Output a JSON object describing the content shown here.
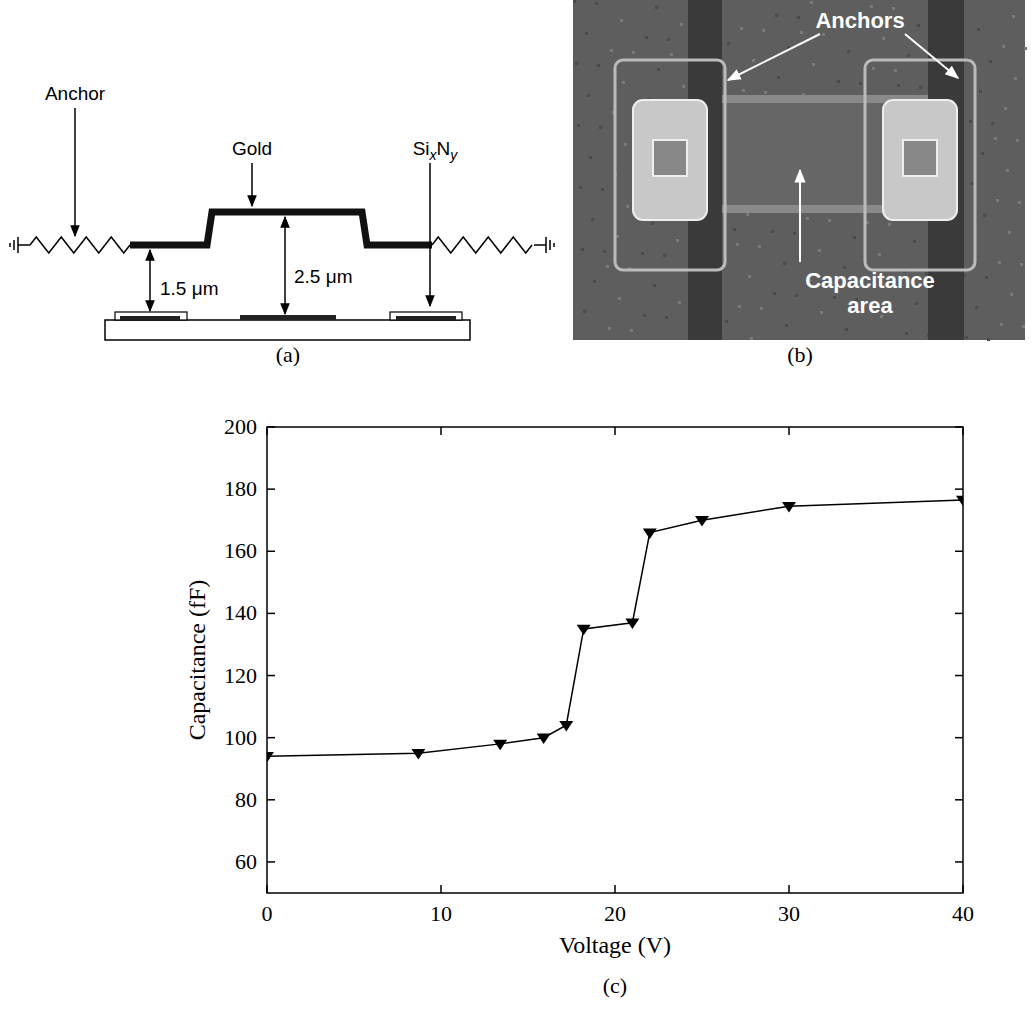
{
  "diagram": {
    "label": "(a)",
    "anchor": "Anchor",
    "gold": "Gold",
    "material": [
      {
        "text": "Si"
      },
      {
        "text": "x",
        "sub": true
      },
      {
        "text": "N"
      },
      {
        "text": "y",
        "sub": true
      }
    ],
    "gap_low": "1.5 μm",
    "gap_high": "2.5 μm"
  },
  "photo": {
    "label": "(b)",
    "anchors": "Anchors",
    "capacitance_area": "Capacitance area"
  },
  "chart_data": {
    "type": "line",
    "label": "(c)",
    "x_label": "Voltage (V)",
    "y_label": "Capacitance (fF)",
    "x": [
      0,
      8.7,
      13.4,
      15.9,
      17.2,
      18.2,
      21,
      22,
      25,
      30,
      40
    ],
    "values": [
      94,
      95,
      98,
      100,
      104,
      135,
      137,
      166,
      170,
      174.5,
      176.5
    ],
    "color": "#000000",
    "marker": "triangle_down",
    "xlim": [
      0,
      40
    ],
    "xticks": [
      0,
      10,
      20,
      30,
      40
    ],
    "ylim": [
      50,
      200
    ],
    "yticks": [
      60,
      80,
      100,
      120,
      140,
      160,
      180,
      200
    ],
    "grid": false
  }
}
